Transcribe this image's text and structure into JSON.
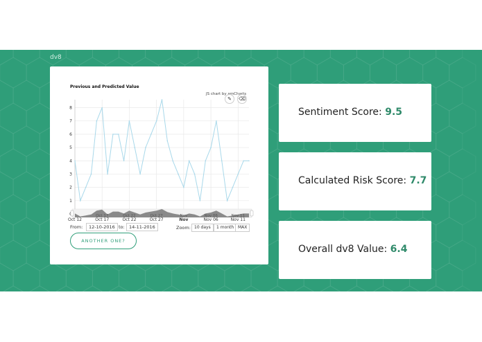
{
  "brand": "dv8",
  "chart": {
    "title": "Previous and Predicted Value",
    "credit": "JS chart by amCharts",
    "icons": [
      "pencil-icon",
      "eraser-icon"
    ],
    "from_label": "From:",
    "from_value": "12-10-2016",
    "to_label": "to:",
    "to_value": "14-11-2016",
    "zoom_label": "Zoom:",
    "zoom_options": [
      "10 days",
      "1 month",
      "MAX"
    ],
    "another_button": "ANOTHER ONE?"
  },
  "chart_data": {
    "type": "line",
    "title": "Previous and Predicted Value",
    "xlabel": "",
    "ylabel": "",
    "x_ticks": [
      "Oct 12",
      "Oct 17",
      "Oct 22",
      "Oct 27",
      "Nov",
      "Nov 06",
      "Nov 11"
    ],
    "y_ticks": [
      "0",
      "1",
      "2",
      "3",
      "4",
      "5",
      "6",
      "7",
      "8"
    ],
    "ylim": [
      0,
      8.6
    ],
    "x": [
      "2016-10-12",
      "2016-10-13",
      "2016-10-14",
      "2016-10-15",
      "2016-10-16",
      "2016-10-17",
      "2016-10-18",
      "2016-10-19",
      "2016-10-20",
      "2016-10-21",
      "2016-10-22",
      "2016-10-23",
      "2016-10-24",
      "2016-10-25",
      "2016-10-26",
      "2016-10-27",
      "2016-10-28",
      "2016-10-29",
      "2016-10-30",
      "2016-10-31",
      "2016-11-01",
      "2016-11-02",
      "2016-11-03",
      "2016-11-04",
      "2016-11-05",
      "2016-11-06",
      "2016-11-07",
      "2016-11-08",
      "2016-11-09",
      "2016-11-10",
      "2016-11-11",
      "2016-11-12",
      "2016-11-13"
    ],
    "series": [
      {
        "values": [
          4,
          1,
          2,
          3,
          7,
          8,
          3,
          6,
          6,
          4,
          7,
          5,
          3,
          5,
          6,
          7,
          8.6,
          5.5,
          4,
          3,
          2,
          4,
          3,
          1,
          4,
          5,
          7,
          4,
          1,
          2,
          3,
          4,
          4
        ],
        "color": "#a8d8ea"
      }
    ],
    "grid": true,
    "scrollbar_labels": [
      "Oct 17",
      "Oct 22",
      "Oct 27",
      "Nov",
      "Nov 06",
      "Nov 11"
    ]
  },
  "scores": [
    {
      "label": "Sentiment Score:",
      "value": "9.5"
    },
    {
      "label": "Calculated Risk Score:",
      "value": "7.7"
    },
    {
      "label": "Overall dv8 Value:",
      "value": "6.4"
    }
  ],
  "colors": {
    "band": "#2f9e79",
    "accent": "#2f8a6a"
  }
}
